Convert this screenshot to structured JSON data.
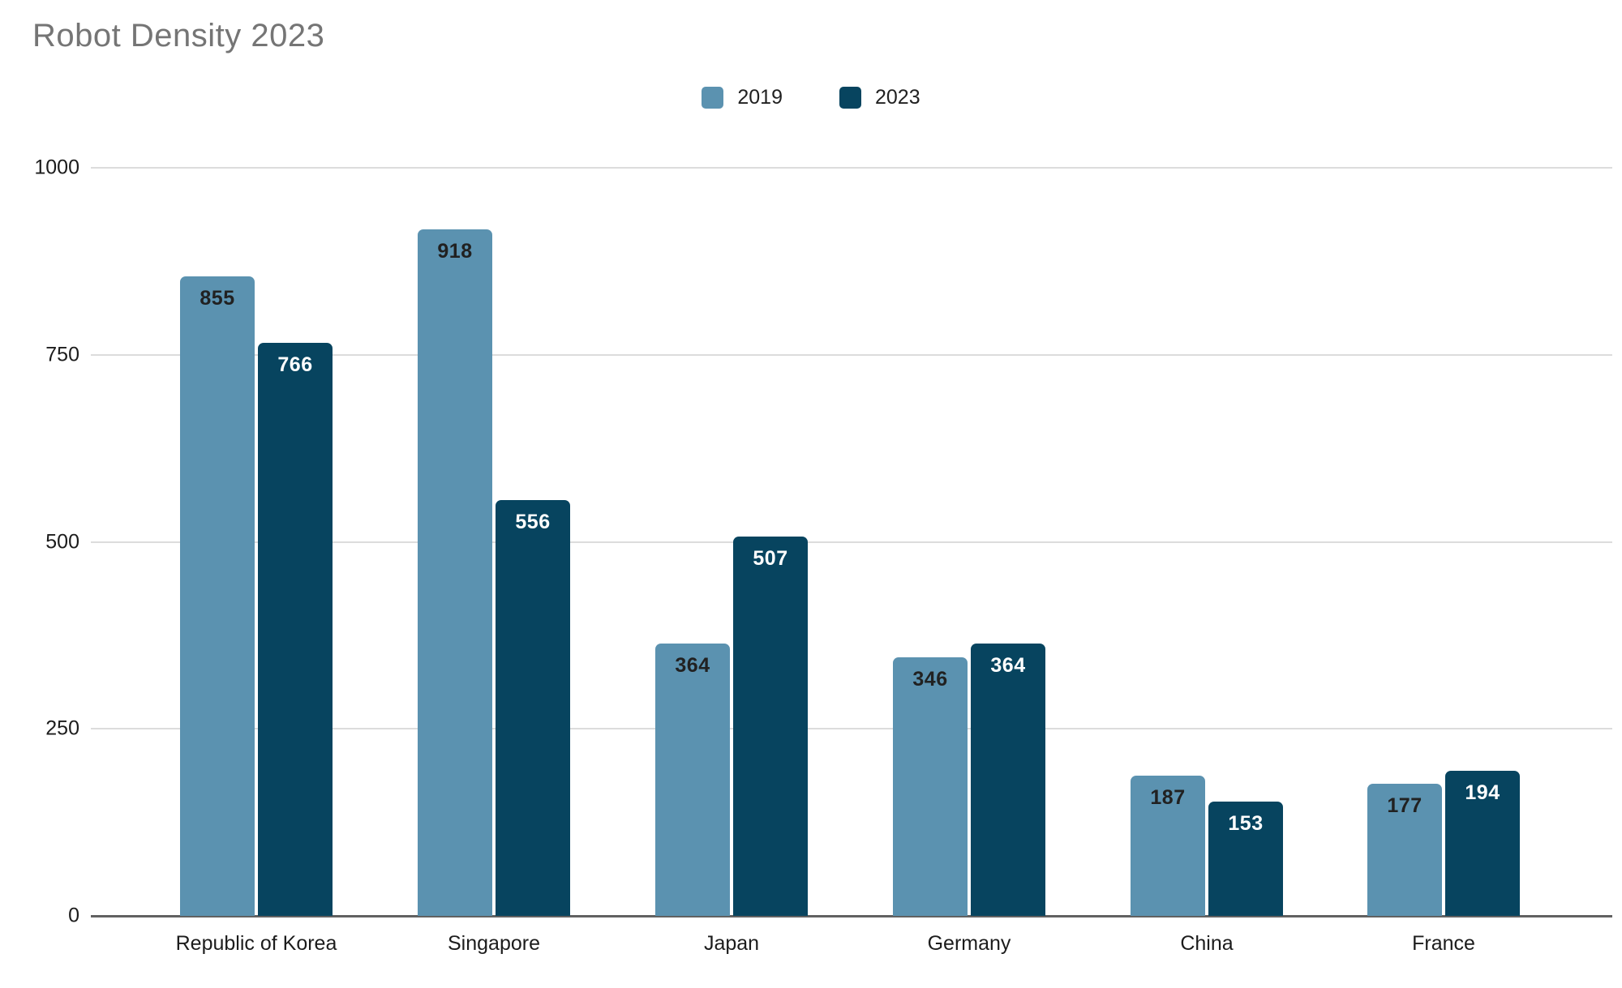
{
  "page": {
    "background_color": "#ffffff"
  },
  "chart_data": {
    "type": "bar",
    "title": "Robot Density 2023",
    "title_color": "#757575",
    "categories": [
      "Republic of Korea",
      "Singapore",
      "Japan",
      "Germany",
      "China",
      "France"
    ],
    "series": [
      {
        "name": "2019",
        "color": "#5b92b0",
        "label_color": "#212121",
        "values": [
          855,
          918,
          364,
          346,
          187,
          177
        ]
      },
      {
        "name": "2023",
        "color": "#07445f",
        "label_color": "#ffffff",
        "values": [
          766,
          556,
          507,
          364,
          153,
          194
        ]
      }
    ],
    "y_ticks": [
      0,
      250,
      500,
      750,
      1000
    ],
    "ylim": [
      0,
      1000
    ],
    "grid": true,
    "legend_position": "top",
    "legend_labels": [
      "2019",
      "2023"
    ],
    "gridline_color": "#dcdcdc",
    "axis_color": "#616161",
    "tick_label_color": "#1c1c1c",
    "data_labels_shown": true
  }
}
